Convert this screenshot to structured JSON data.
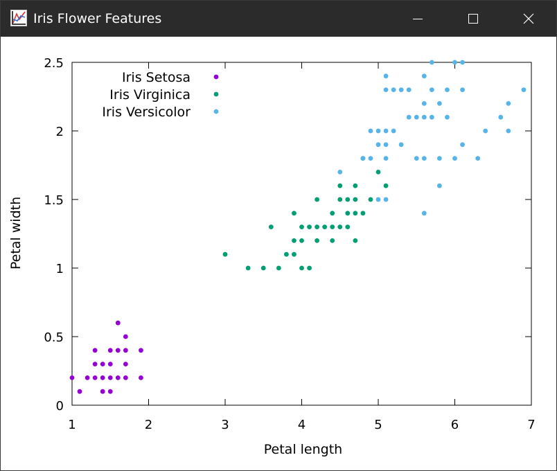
{
  "window": {
    "title": "Iris Flower Features",
    "titlebar_color": "#2b2b2b",
    "icons": [
      "gnuplot-app-icon",
      "minimize-icon",
      "maximize-icon",
      "close-icon"
    ]
  },
  "chart_data": {
    "type": "scatter",
    "title": "",
    "xlabel": "Petal length",
    "ylabel": "Petal width",
    "xlim": [
      1,
      7
    ],
    "ylim": [
      0,
      2.5
    ],
    "x_ticks": [
      "1",
      "2",
      "3",
      "4",
      "5",
      "6",
      "7"
    ],
    "y_ticks": [
      "0",
      "0.5",
      "1",
      "1.5",
      "2",
      "2.5"
    ],
    "grid": false,
    "legend_position": "top-left",
    "series": [
      {
        "name": "Iris Setosa",
        "color": "#9400d3",
        "points": [
          [
            1.0,
            0.2
          ],
          [
            1.1,
            0.1
          ],
          [
            1.2,
            0.2
          ],
          [
            1.3,
            0.2
          ],
          [
            1.3,
            0.3
          ],
          [
            1.3,
            0.4
          ],
          [
            1.4,
            0.1
          ],
          [
            1.4,
            0.2
          ],
          [
            1.4,
            0.3
          ],
          [
            1.5,
            0.1
          ],
          [
            1.5,
            0.2
          ],
          [
            1.5,
            0.3
          ],
          [
            1.5,
            0.4
          ],
          [
            1.6,
            0.2
          ],
          [
            1.6,
            0.4
          ],
          [
            1.6,
            0.6
          ],
          [
            1.7,
            0.2
          ],
          [
            1.7,
            0.3
          ],
          [
            1.7,
            0.4
          ],
          [
            1.7,
            0.5
          ],
          [
            1.9,
            0.2
          ],
          [
            1.9,
            0.4
          ]
        ]
      },
      {
        "name": "Iris Virginica",
        "color": "#009e73",
        "points": [
          [
            3.0,
            1.1
          ],
          [
            3.3,
            1.0
          ],
          [
            3.5,
            1.0
          ],
          [
            3.6,
            1.3
          ],
          [
            3.7,
            1.0
          ],
          [
            3.8,
            1.1
          ],
          [
            3.9,
            1.1
          ],
          [
            3.9,
            1.2
          ],
          [
            3.9,
            1.4
          ],
          [
            4.0,
            1.0
          ],
          [
            4.0,
            1.2
          ],
          [
            4.0,
            1.3
          ],
          [
            4.1,
            1.0
          ],
          [
            4.1,
            1.3
          ],
          [
            4.2,
            1.2
          ],
          [
            4.2,
            1.3
          ],
          [
            4.2,
            1.5
          ],
          [
            4.3,
            1.3
          ],
          [
            4.4,
            1.2
          ],
          [
            4.4,
            1.3
          ],
          [
            4.4,
            1.4
          ],
          [
            4.5,
            1.3
          ],
          [
            4.5,
            1.5
          ],
          [
            4.5,
            1.6
          ],
          [
            4.6,
            1.3
          ],
          [
            4.6,
            1.4
          ],
          [
            4.6,
            1.5
          ],
          [
            4.7,
            1.2
          ],
          [
            4.7,
            1.4
          ],
          [
            4.7,
            1.5
          ],
          [
            4.7,
            1.6
          ],
          [
            4.8,
            1.4
          ],
          [
            4.8,
            1.8
          ],
          [
            4.9,
            1.5
          ],
          [
            5.0,
            1.7
          ],
          [
            5.1,
            1.6
          ]
        ]
      },
      {
        "name": "Iris Versicolor",
        "color": "#56b4e9",
        "points": [
          [
            4.5,
            1.7
          ],
          [
            4.8,
            1.8
          ],
          [
            4.9,
            1.8
          ],
          [
            4.9,
            2.0
          ],
          [
            5.0,
            1.5
          ],
          [
            5.0,
            1.9
          ],
          [
            5.0,
            2.0
          ],
          [
            5.1,
            1.5
          ],
          [
            5.1,
            1.8
          ],
          [
            5.1,
            1.9
          ],
          [
            5.1,
            2.0
          ],
          [
            5.1,
            2.3
          ],
          [
            5.1,
            2.4
          ],
          [
            5.2,
            2.0
          ],
          [
            5.2,
            2.3
          ],
          [
            5.3,
            1.9
          ],
          [
            5.3,
            2.3
          ],
          [
            5.4,
            2.1
          ],
          [
            5.4,
            2.3
          ],
          [
            5.5,
            1.8
          ],
          [
            5.5,
            2.1
          ],
          [
            5.6,
            1.4
          ],
          [
            5.6,
            1.8
          ],
          [
            5.6,
            2.1
          ],
          [
            5.6,
            2.2
          ],
          [
            5.6,
            2.4
          ],
          [
            5.7,
            2.1
          ],
          [
            5.7,
            2.3
          ],
          [
            5.7,
            2.5
          ],
          [
            5.8,
            1.6
          ],
          [
            5.8,
            1.8
          ],
          [
            5.8,
            2.2
          ],
          [
            5.9,
            2.1
          ],
          [
            5.9,
            2.3
          ],
          [
            6.0,
            1.8
          ],
          [
            6.0,
            2.5
          ],
          [
            6.1,
            1.9
          ],
          [
            6.1,
            2.3
          ],
          [
            6.1,
            2.5
          ],
          [
            6.3,
            1.8
          ],
          [
            6.4,
            2.0
          ],
          [
            6.6,
            2.1
          ],
          [
            6.7,
            2.0
          ],
          [
            6.7,
            2.2
          ],
          [
            6.9,
            2.3
          ]
        ]
      }
    ]
  }
}
